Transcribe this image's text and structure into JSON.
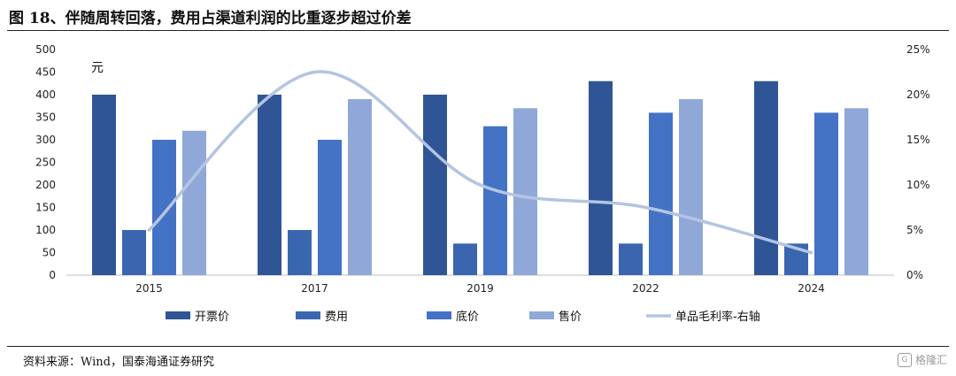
{
  "title": "图 18、伴随周转回落，费用占渠道利润的比重逐步超过价差",
  "source": "资料来源：Wind，国泰海通证券研究",
  "watermark": {
    "text": "格隆汇",
    "logo_letter": "G"
  },
  "chart_data": {
    "type": "bar",
    "categories": [
      "2015",
      "2017",
      "2019",
      "2022",
      "2024"
    ],
    "y_unit_label": "元",
    "ylim": [
      0,
      500
    ],
    "yticks": [
      0,
      50,
      100,
      150,
      200,
      250,
      300,
      350,
      400,
      450,
      500
    ],
    "y2lim": [
      0,
      25
    ],
    "y2ticks": [
      "0%",
      "5%",
      "10%",
      "15%",
      "20%",
      "25%"
    ],
    "series": [
      {
        "name": "开票价",
        "type": "bar",
        "axis": "left",
        "color": "#2F5597",
        "values": [
          400,
          400,
          400,
          430,
          430
        ]
      },
      {
        "name": "费用",
        "type": "bar",
        "axis": "left",
        "color": "#3A66B0",
        "values": [
          100,
          100,
          70,
          70,
          70
        ]
      },
      {
        "name": "底价",
        "type": "bar",
        "axis": "left",
        "color": "#4472C4",
        "values": [
          300,
          300,
          330,
          360,
          360
        ]
      },
      {
        "name": "售价",
        "type": "bar",
        "axis": "left",
        "color": "#8FA8D8",
        "values": [
          320,
          390,
          370,
          390,
          370
        ]
      },
      {
        "name": "单品毛利率-右轴",
        "type": "line",
        "axis": "right",
        "color": "#B4C4E2",
        "values": [
          5,
          22.5,
          10,
          7.5,
          2.5
        ]
      }
    ],
    "grid": false,
    "legend_position": "bottom"
  }
}
